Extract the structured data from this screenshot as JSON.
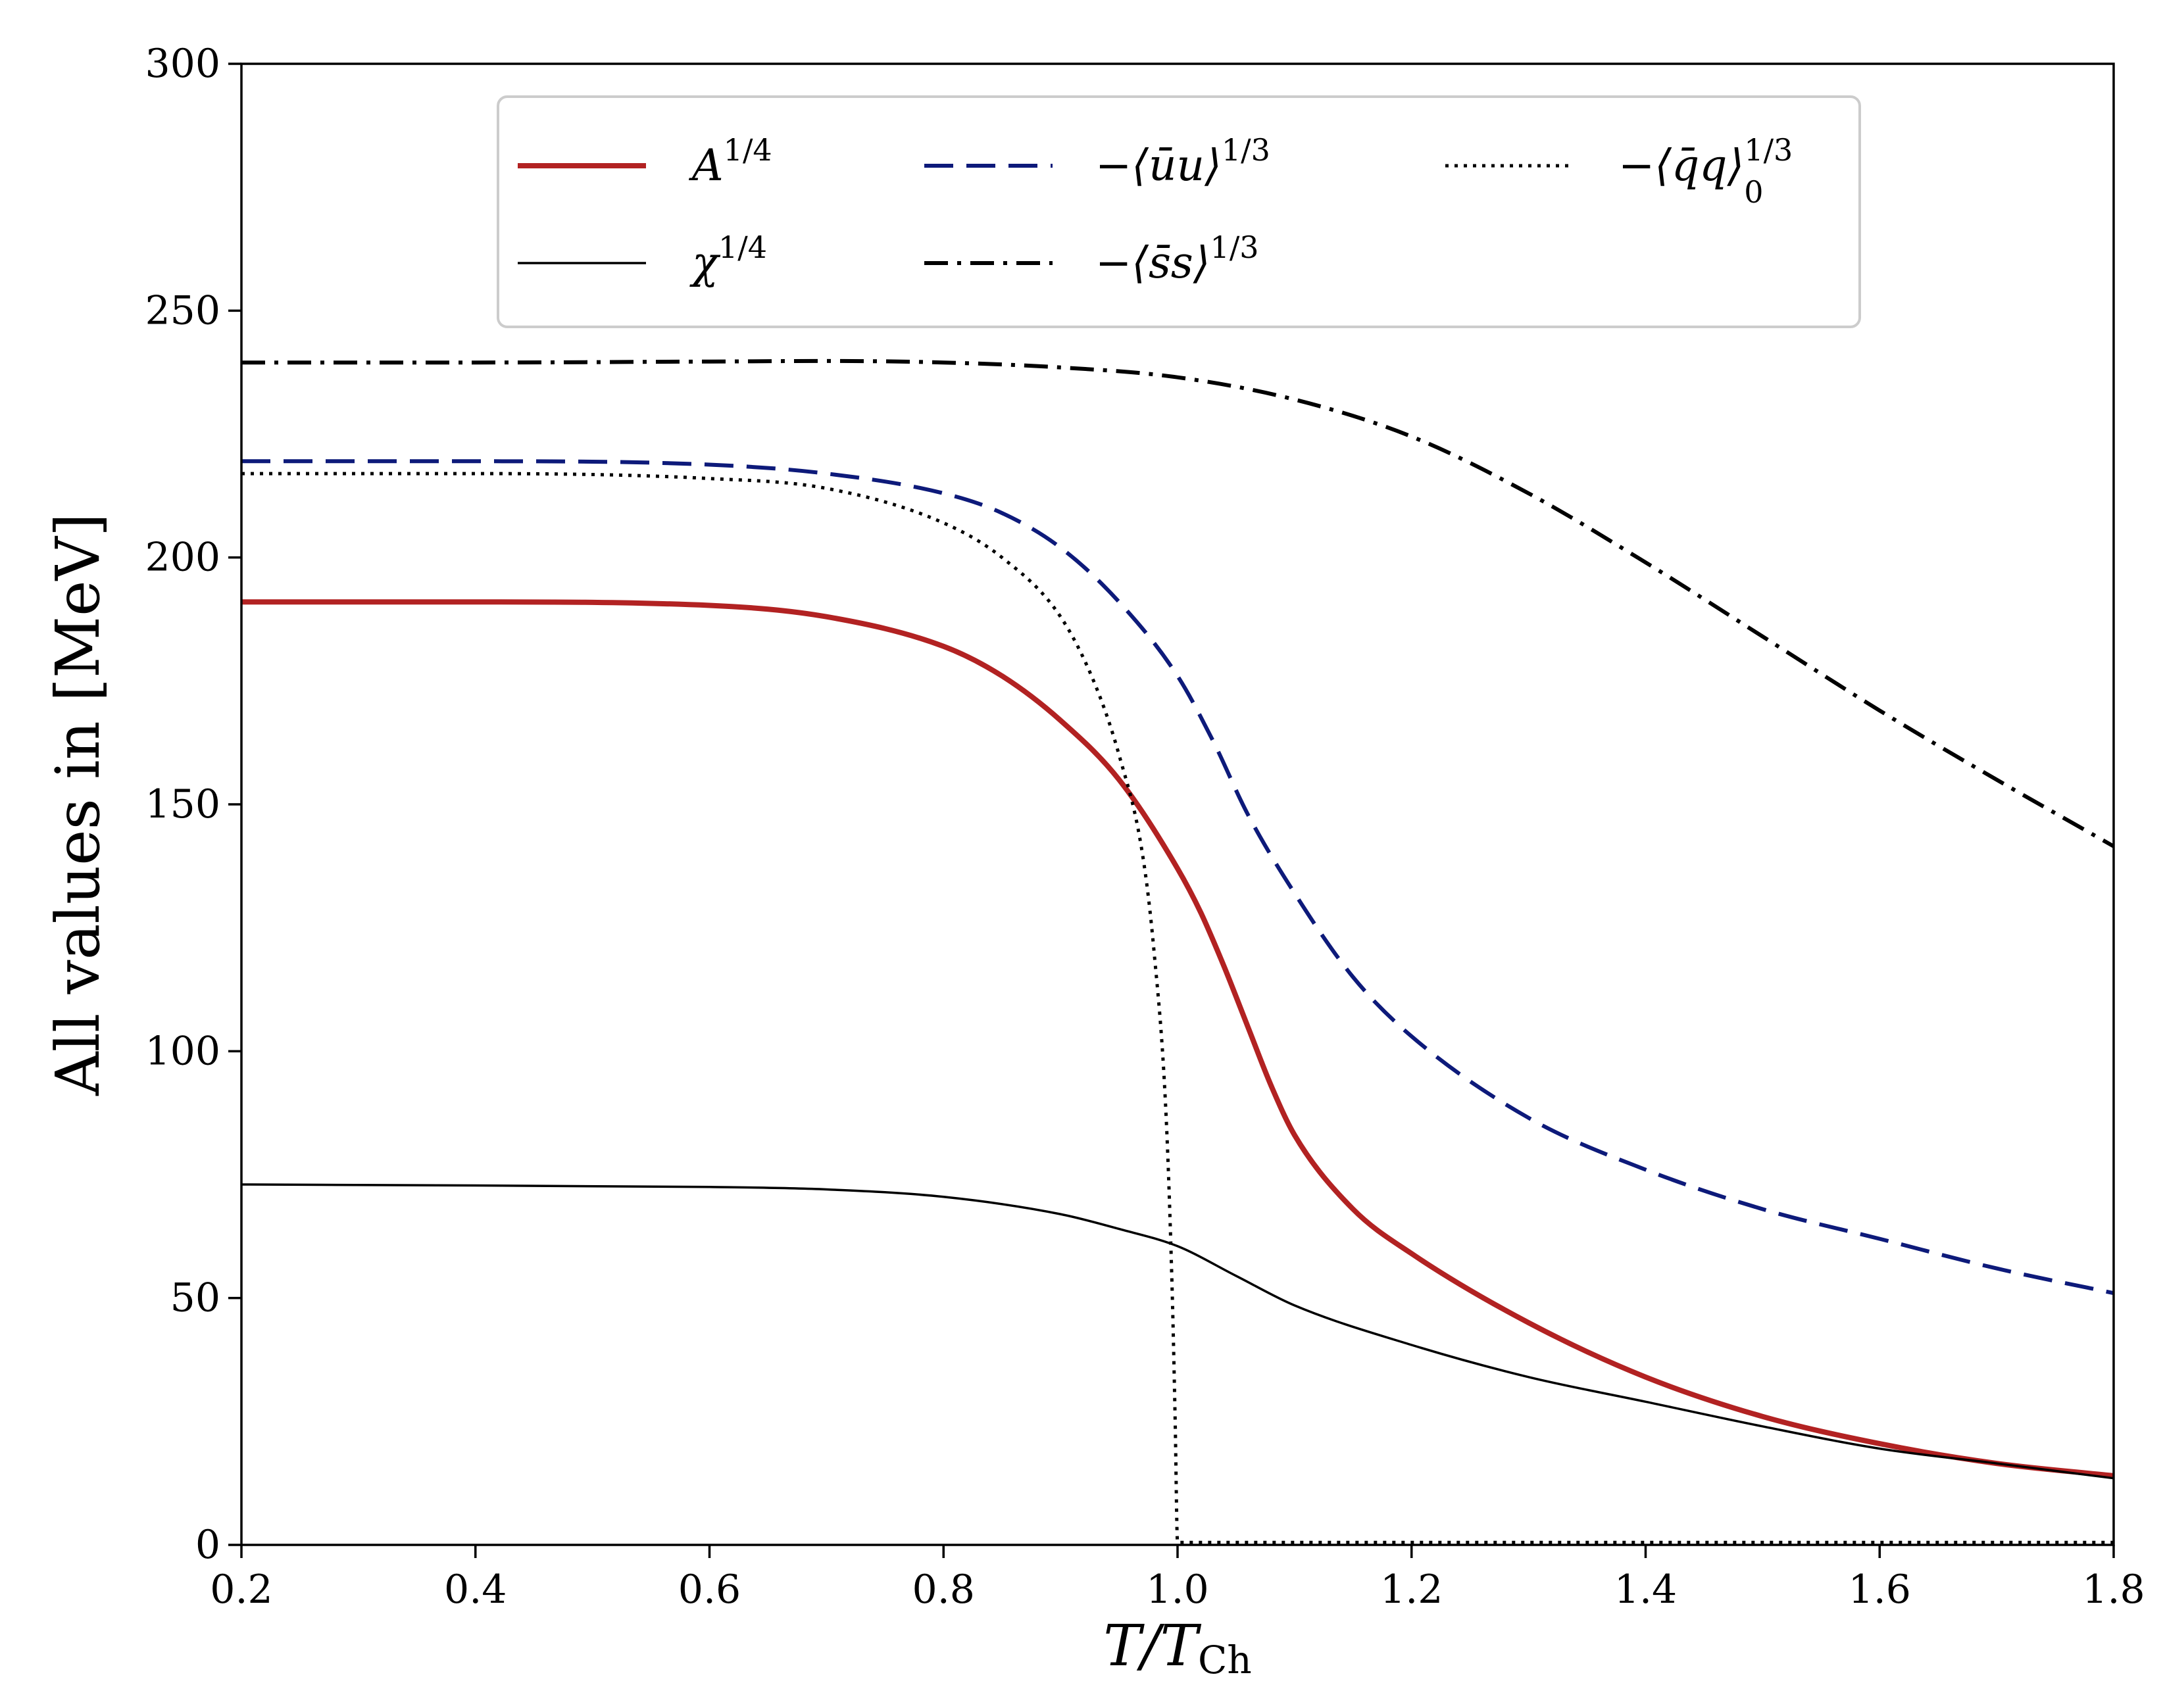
{
  "chart_data": {
    "type": "line",
    "xlabel": {
      "main": "T/T",
      "sub": "Ch"
    },
    "ylabel": "All values in [MeV]",
    "xlim": [
      0.2,
      1.8
    ],
    "ylim": [
      0,
      300
    ],
    "xticks": [
      0.2,
      0.4,
      0.6,
      0.8,
      1.0,
      1.2,
      1.4,
      1.6,
      1.8
    ],
    "xtick_labels": [
      "0.2",
      "0.4",
      "0.6",
      "0.8",
      "1.0",
      "1.2",
      "1.4",
      "1.6",
      "1.8"
    ],
    "yticks": [
      0,
      50,
      100,
      150,
      200,
      250,
      300
    ],
    "ytick_labels": [
      "0",
      "50",
      "100",
      "150",
      "200",
      "250",
      "300"
    ],
    "grid": false,
    "legend_position": "top-center",
    "series": [
      {
        "key": "A",
        "name": {
          "base": "A",
          "sup": "1/4"
        },
        "color": "#b22222",
        "style": "solid-thick",
        "x": [
          0.2,
          0.4,
          0.6,
          0.7,
          0.8,
          0.85,
          0.9,
          0.95,
          1.0,
          1.02,
          1.04,
          1.06,
          1.08,
          1.1,
          1.15,
          1.2,
          1.3,
          1.4,
          1.5,
          1.6,
          1.7,
          1.8
        ],
        "y": [
          191,
          191,
          190.3,
          188,
          182,
          176,
          167,
          155,
          137,
          128,
          117,
          105,
          93,
          83,
          68,
          59,
          45,
          34,
          26,
          20.5,
          16.5,
          14
        ]
      },
      {
        "key": "chi",
        "name": {
          "base": "χ",
          "sup": "1/4"
        },
        "color": "#000000",
        "style": "solid-thin",
        "x": [
          0.2,
          0.4,
          0.6,
          0.7,
          0.8,
          0.9,
          0.95,
          1.0,
          1.05,
          1.1,
          1.2,
          1.3,
          1.4,
          1.5,
          1.6,
          1.7,
          1.8
        ],
        "y": [
          73,
          72.8,
          72.5,
          72,
          70.5,
          67,
          64,
          60.5,
          54.5,
          48.5,
          40.5,
          34,
          29,
          24,
          19.5,
          16.5,
          13.5
        ]
      },
      {
        "key": "uu",
        "name": {
          "base": "−⟨ūu⟩",
          "sup": "1/3"
        },
        "color": "#0d1a7a",
        "style": "dashed",
        "x": [
          0.2,
          0.4,
          0.6,
          0.7,
          0.8,
          0.85,
          0.9,
          0.95,
          1.0,
          1.03,
          1.06,
          1.1,
          1.15,
          1.2,
          1.3,
          1.4,
          1.5,
          1.6,
          1.7,
          1.8
        ],
        "y": [
          219.5,
          219.5,
          218.8,
          217,
          213,
          209,
          202,
          191,
          176,
          163,
          148,
          132,
          115,
          103,
          86.5,
          76,
          68,
          62,
          56,
          51
        ]
      },
      {
        "key": "ss",
        "name": {
          "base": "−⟨s̄s⟩",
          "sup": "1/3"
        },
        "color": "#000000",
        "style": "dashdot",
        "x": [
          0.2,
          0.4,
          0.6,
          0.7,
          0.8,
          0.9,
          1.0,
          1.1,
          1.2,
          1.3,
          1.4,
          1.5,
          1.6,
          1.7,
          1.8
        ],
        "y": [
          239.5,
          239.5,
          239.7,
          239.8,
          239.5,
          238.5,
          236.5,
          232,
          224.5,
          213,
          199,
          184,
          169,
          155,
          141.5
        ]
      },
      {
        "key": "qq0",
        "name": {
          "base": "−⟨q̄q⟩",
          "sup": "1/3",
          "sub": "0"
        },
        "color": "#000000",
        "style": "dotted",
        "x": [
          0.2,
          0.4,
          0.6,
          0.7,
          0.8,
          0.85,
          0.9,
          0.93,
          0.95,
          0.97,
          0.98,
          0.99,
          0.995,
          0.998,
          1.0,
          1.2,
          1.4,
          1.6,
          1.8
        ],
        "y": [
          217,
          217,
          216,
          214,
          207,
          200,
          188,
          174,
          160,
          140,
          120,
          88,
          55,
          25,
          0.5,
          0.5,
          0.5,
          0.5,
          0.5
        ]
      }
    ]
  }
}
